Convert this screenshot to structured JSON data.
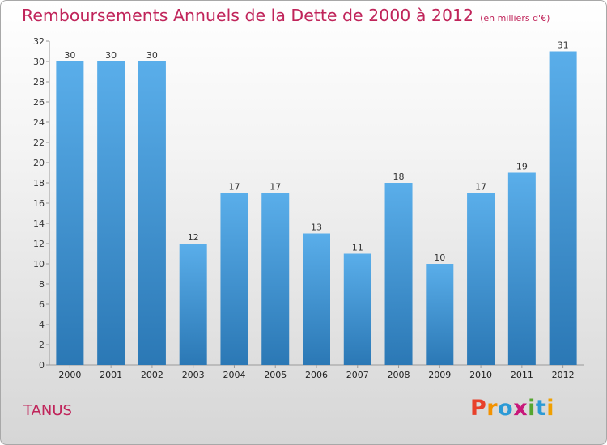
{
  "title": "Remboursements Annuels de la Dette de 2000 à 2012",
  "subtitle": "(en milliers d'€)",
  "commune": "TANUS",
  "logo": {
    "letters": [
      "P",
      "r",
      "o",
      "x",
      "i",
      "t",
      "i"
    ],
    "colors": [
      "#e8402a",
      "#f39200",
      "#2b9ad6",
      "#c8177a",
      "#55a630",
      "#2b9ad6",
      "#f0a000"
    ]
  },
  "colors": {
    "bar_top": "#5aaeea",
    "bar_bottom": "#2b78b5",
    "title": "#c0245a"
  },
  "chart_data": {
    "type": "bar",
    "title": "Remboursements Annuels de la Dette de 2000 à 2012",
    "xlabel": "",
    "ylabel": "",
    "categories": [
      "2000",
      "2001",
      "2002",
      "2003",
      "2004",
      "2005",
      "2006",
      "2007",
      "2008",
      "2009",
      "2010",
      "2011",
      "2012"
    ],
    "values": [
      30,
      30,
      30,
      12,
      17,
      17,
      13,
      11,
      18,
      10,
      17,
      19,
      31
    ],
    "ylim": [
      0,
      32
    ],
    "yticks": [
      0,
      2,
      4,
      6,
      8,
      10,
      12,
      14,
      16,
      18,
      20,
      22,
      24,
      26,
      28,
      30,
      32
    ],
    "grid": false,
    "data_labels": true
  }
}
